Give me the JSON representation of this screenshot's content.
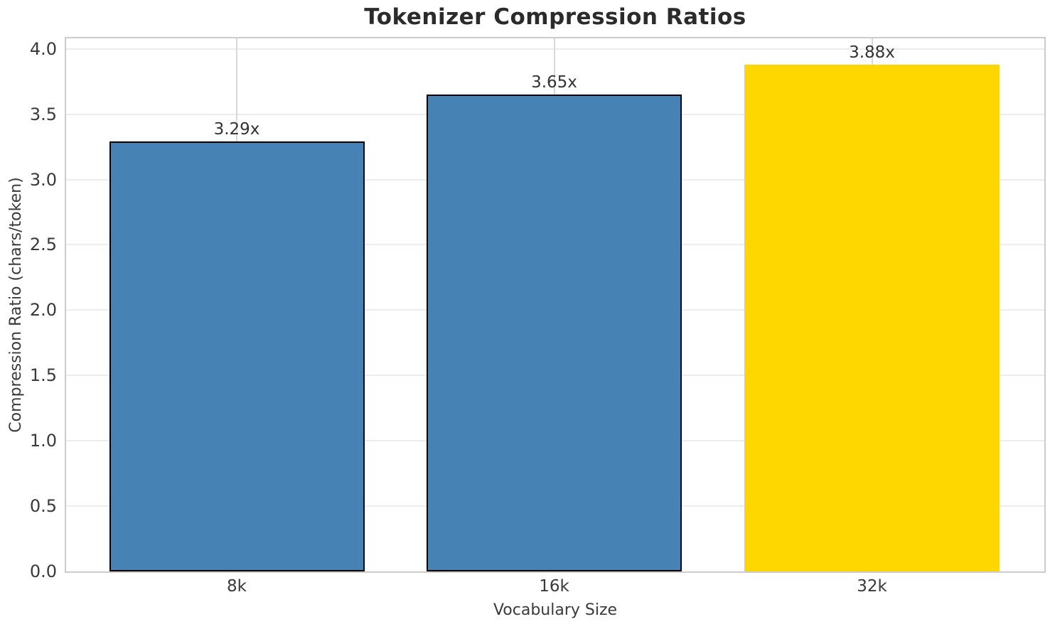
{
  "chart_data": {
    "type": "bar",
    "title": "Tokenizer Compression Ratios",
    "xlabel": "Vocabulary Size",
    "ylabel": "Compression Ratio (chars/token)",
    "categories": [
      "8k",
      "16k",
      "32k"
    ],
    "values": [
      3.29,
      3.65,
      3.88
    ],
    "bar_labels": [
      "3.29x",
      "3.65x",
      "3.88x"
    ],
    "bar_colors": [
      "#4682B4",
      "#4682B4",
      "#FFD700"
    ],
    "bar_edge_colors": [
      "#000000",
      "#000000",
      "none"
    ],
    "ylim": [
      0,
      4.08
    ],
    "ytick_labels": [
      "0.0",
      "0.5",
      "1.0",
      "1.5",
      "2.0",
      "2.5",
      "3.0",
      "3.5",
      "4.0"
    ],
    "grid": true,
    "legend_position": "none"
  }
}
